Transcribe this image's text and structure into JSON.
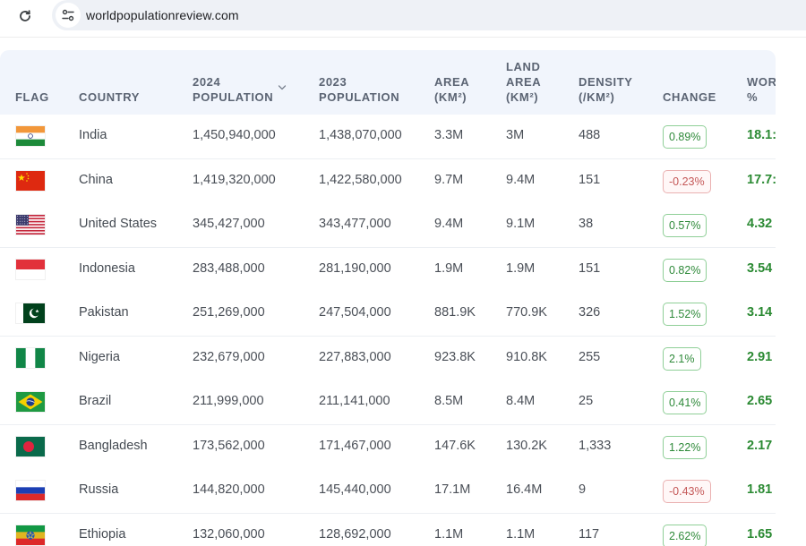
{
  "browser": {
    "url": "worldpopulationreview.com"
  },
  "table": {
    "headers": {
      "flag": "FLAG",
      "country": "COUNTRY",
      "pop2024": "2024 POPULATION",
      "pop2024_line1": "2024",
      "pop2024_line2": "POPULATION",
      "pop2023_line1": "2023",
      "pop2023_line2": "POPULATION",
      "area_line1": "AREA",
      "area_line2": "(KM²)",
      "land_line1": "LAND",
      "land_line2": "AREA",
      "land_line3": "(KM²)",
      "density_line1": "DENSITY",
      "density_line2": "(/KM²)",
      "change": "CHANGE",
      "world_line1": "WOR",
      "world_line2": "%"
    },
    "rows": [
      {
        "country": "India",
        "flag": "india-flag",
        "pop2024": "1,450,940,000",
        "pop2023": "1,438,070,000",
        "area": "3.3M",
        "land_area": "3M",
        "density": "488",
        "change": "0.89%",
        "change_dir": "up",
        "world": "18.1:"
      },
      {
        "country": "China",
        "flag": "china-flag",
        "pop2024": "1,419,320,000",
        "pop2023": "1,422,580,000",
        "area": "9.7M",
        "land_area": "9.4M",
        "density": "151",
        "change": "-0.23%",
        "change_dir": "down",
        "world": "17.7:"
      },
      {
        "country": "United States",
        "flag": "usa-flag",
        "pop2024": "345,427,000",
        "pop2023": "343,477,000",
        "area": "9.4M",
        "land_area": "9.1M",
        "density": "38",
        "change": "0.57%",
        "change_dir": "up",
        "world": "4.32"
      },
      {
        "country": "Indonesia",
        "flag": "indonesia-flag",
        "pop2024": "283,488,000",
        "pop2023": "281,190,000",
        "area": "1.9M",
        "land_area": "1.9M",
        "density": "151",
        "change": "0.82%",
        "change_dir": "up",
        "world": "3.54"
      },
      {
        "country": "Pakistan",
        "flag": "pakistan-flag",
        "pop2024": "251,269,000",
        "pop2023": "247,504,000",
        "area": "881.9K",
        "land_area": "770.9K",
        "density": "326",
        "change": "1.52%",
        "change_dir": "up",
        "world": "3.14"
      },
      {
        "country": "Nigeria",
        "flag": "nigeria-flag",
        "pop2024": "232,679,000",
        "pop2023": "227,883,000",
        "area": "923.8K",
        "land_area": "910.8K",
        "density": "255",
        "change": "2.1%",
        "change_dir": "up",
        "world": "2.91"
      },
      {
        "country": "Brazil",
        "flag": "brazil-flag",
        "pop2024": "211,999,000",
        "pop2023": "211,141,000",
        "area": "8.5M",
        "land_area": "8.4M",
        "density": "25",
        "change": "0.41%",
        "change_dir": "up",
        "world": "2.65"
      },
      {
        "country": "Bangladesh",
        "flag": "bangladesh-flag",
        "pop2024": "173,562,000",
        "pop2023": "171,467,000",
        "area": "147.6K",
        "land_area": "130.2K",
        "density": "1,333",
        "change": "1.22%",
        "change_dir": "up",
        "world": "2.17"
      },
      {
        "country": "Russia",
        "flag": "russia-flag",
        "pop2024": "144,820,000",
        "pop2023": "145,440,000",
        "area": "17.1M",
        "land_area": "16.4M",
        "density": "9",
        "change": "-0.43%",
        "change_dir": "down",
        "world": "1.81"
      },
      {
        "country": "Ethiopia",
        "flag": "ethiopia-flag",
        "pop2024": "132,060,000",
        "pop2023": "128,692,000",
        "area": "1.1M",
        "land_area": "1.1M",
        "density": "117",
        "change": "2.62%",
        "change_dir": "up",
        "world": "1.65"
      }
    ]
  },
  "colors": {
    "header_bg": "#f1f5fc",
    "positive": "#2f8a3a",
    "negative": "#c45757",
    "world_pct": "#2b8a33"
  }
}
